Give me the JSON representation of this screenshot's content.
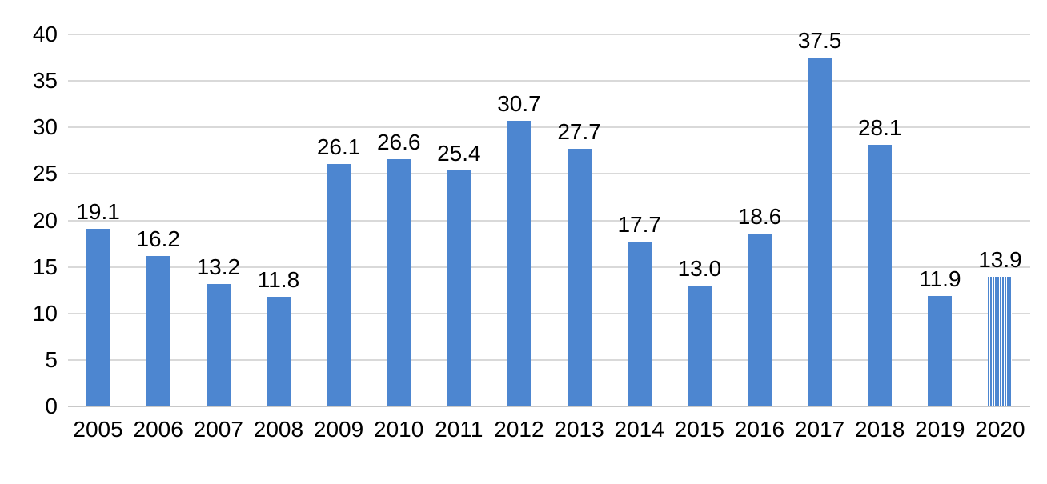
{
  "chart_data": {
    "type": "bar",
    "categories": [
      "2005",
      "2006",
      "2007",
      "2008",
      "2009",
      "2010",
      "2011",
      "2012",
      "2013",
      "2014",
      "2015",
      "2016",
      "2017",
      "2018",
      "2019",
      "2020"
    ],
    "values": [
      19.1,
      16.2,
      13.2,
      11.8,
      26.1,
      26.6,
      25.4,
      30.7,
      27.7,
      17.7,
      13.0,
      18.6,
      37.5,
      28.1,
      11.9,
      13.9
    ],
    "value_labels": [
      "19.1",
      "16.2",
      "13.2",
      "11.8",
      "26.1",
      "26.6",
      "25.4",
      "30.7",
      "27.7",
      "17.7",
      "13.0",
      "18.6",
      "37.5",
      "28.1",
      "11.9",
      "13.9"
    ],
    "y_ticks": [
      "40",
      "35",
      "30",
      "25",
      "20",
      "15",
      "10",
      "5",
      "0"
    ],
    "ylim": [
      0,
      40
    ],
    "grid": true,
    "legend": false,
    "title": "",
    "xlabel": "",
    "ylabel": "",
    "striped_category": "2020",
    "colors": {
      "bar": "#4d86d0",
      "stripe_gap": "#ffffff",
      "gridline": "#d9d9d9",
      "axis_line": "#c8c8c8",
      "text": "#000000",
      "background": "#ffffff"
    }
  }
}
